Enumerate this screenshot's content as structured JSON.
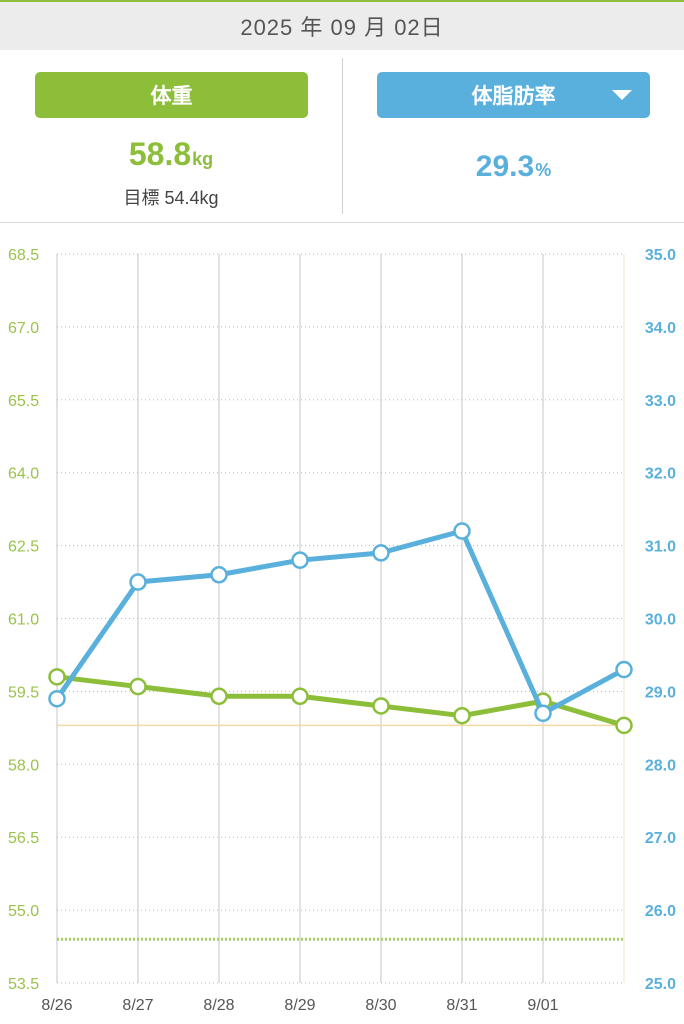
{
  "header": {
    "date": "2025 年 09 月 02日"
  },
  "weight_panel": {
    "tab_label": "体重",
    "value": "58.8",
    "unit": "kg",
    "goal_text": "目標 54.4kg"
  },
  "fat_panel": {
    "tab_label": "体脂肪率",
    "value": "29.3",
    "unit": "%",
    "dropdown_icon": "caret-down-icon"
  },
  "colors": {
    "weight": "#8cbe3a",
    "fat": "#5ab0dc",
    "reference_line": "#f2d9a2"
  },
  "chart_data": {
    "type": "line",
    "categories": [
      "8/26",
      "8/27",
      "8/28",
      "8/29",
      "8/30",
      "8/31",
      "9/01",
      ""
    ],
    "y_left": {
      "ylim": [
        53.5,
        68.5
      ],
      "ticks": [
        "68.5",
        "67.0",
        "65.5",
        "64.0",
        "62.5",
        "61.0",
        "59.5",
        "58.0",
        "56.5",
        "55.0",
        "53.5"
      ]
    },
    "y_right": {
      "ylim": [
        25.0,
        35.0
      ],
      "ticks": [
        "35.0",
        "34.0",
        "33.0",
        "32.0",
        "31.0",
        "30.0",
        "29.0",
        "28.0",
        "27.0",
        "26.0",
        "25.0"
      ]
    },
    "series": [
      {
        "axis": "left",
        "color": "#8cbe3a",
        "values": [
          59.8,
          59.6,
          59.4,
          59.4,
          59.2,
          59.0,
          59.3,
          58.8
        ]
      },
      {
        "axis": "right",
        "color": "#5ab0dc",
        "values": [
          28.9,
          30.5,
          30.6,
          30.8,
          30.9,
          31.2,
          28.7,
          29.3
        ]
      }
    ],
    "reference_lines": [
      {
        "axis": "left",
        "value": 58.8,
        "style": "solid",
        "color": "#f2d9a2"
      },
      {
        "axis": "left",
        "value": 54.4,
        "style": "dotted",
        "color": "#a9cc63"
      }
    ],
    "grid": true
  }
}
